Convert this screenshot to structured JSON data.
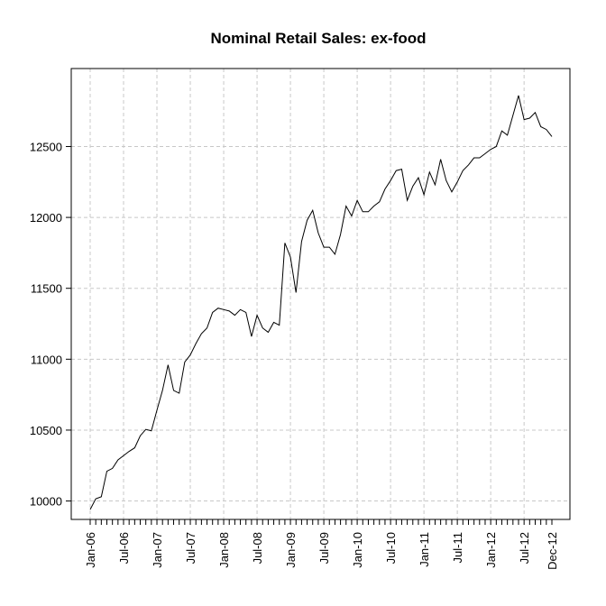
{
  "chart_data": {
    "type": "line",
    "title": "Nominal Retail Sales: ex-food",
    "xlabel": "",
    "ylabel": "",
    "ylim": [
      9870,
      13050
    ],
    "yticks": [
      10000,
      10500,
      11000,
      11500,
      12000,
      12500
    ],
    "grid": true,
    "x_start": "Jan-06",
    "x_end": "Dec-12",
    "xtick_labels": [
      "Jan-06",
      "Jul-06",
      "Jan-07",
      "Jul-07",
      "Jan-08",
      "Jul-08",
      "Jan-09",
      "Jul-09",
      "Jan-10",
      "Jul-10",
      "Jan-11",
      "Jul-11",
      "Jan-12",
      "Jul-12",
      "Dec-12"
    ],
    "series": [
      {
        "values": [
          9940,
          10015,
          10030,
          10210,
          10230,
          10290,
          10320,
          10350,
          10375,
          10460,
          10505,
          10495,
          10640,
          10780,
          10960,
          10780,
          10760,
          10980,
          11030,
          11110,
          11180,
          11220,
          11330,
          11360,
          11350,
          11340,
          11310,
          11350,
          11330,
          11160,
          11310,
          11220,
          11190,
          11260,
          11240,
          11820,
          11720,
          11470,
          11830,
          11980,
          12050,
          11890,
          11790,
          11790,
          11740,
          11880,
          12080,
          12010,
          12120,
          12040,
          12040,
          12080,
          12110,
          12200,
          12260,
          12330,
          12340,
          12120,
          12220,
          12280,
          12160,
          12320,
          12230,
          12410,
          12260,
          12180,
          12250,
          12330,
          12370,
          12420,
          12420,
          12450,
          12480,
          12500,
          12610,
          12580,
          12720,
          12860,
          12690,
          12700,
          12740,
          12640,
          12620,
          12570
        ]
      }
    ]
  }
}
